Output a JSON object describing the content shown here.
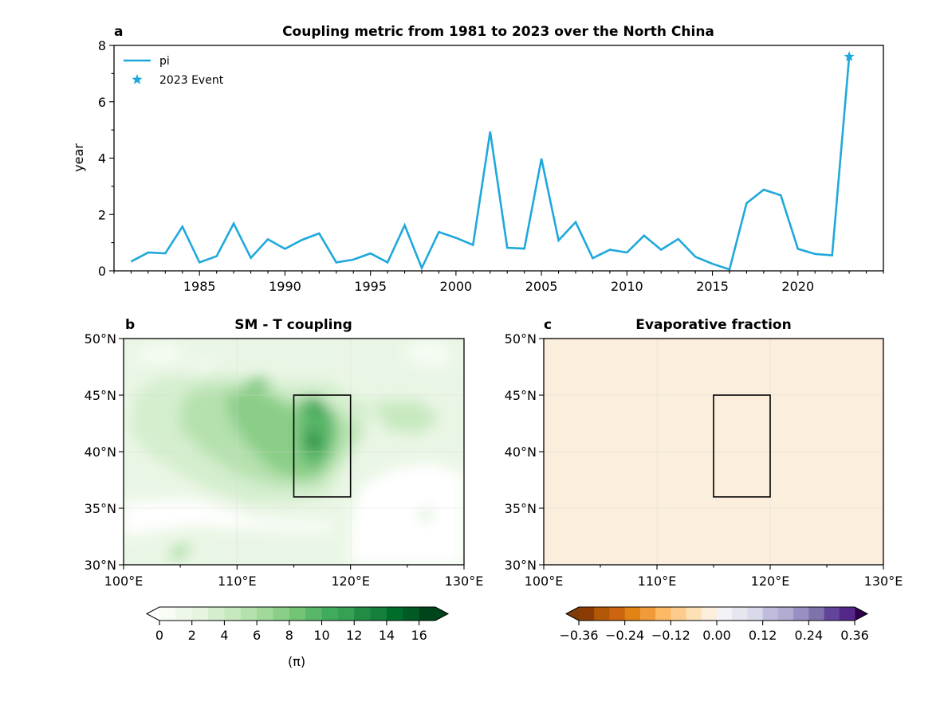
{
  "chart_data": [
    {
      "panel": "a",
      "type": "line",
      "title": "Coupling metric from 1981 to 2023 over the North China",
      "xlabel": "",
      "ylabel": "year",
      "xlim": [
        1980,
        2025
      ],
      "ylim": [
        0,
        8
      ],
      "xticks": [
        1985,
        1990,
        1995,
        2000,
        2005,
        2010,
        2015,
        2020
      ],
      "xtick_labels": [
        "1985",
        "1990",
        "1995",
        "2000",
        "2005",
        "2010",
        "2015",
        "2020"
      ],
      "yticks": [
        0,
        2,
        4,
        6,
        8
      ],
      "ytick_labels": [
        "0",
        "2",
        "4",
        "6",
        "8"
      ],
      "legend": {
        "placement": "top-left",
        "entries": [
          "pi",
          "2023 Event"
        ]
      },
      "color": "#1fa8dc",
      "series": [
        {
          "name": "pi",
          "x": [
            1981,
            1982,
            1983,
            1984,
            1985,
            1986,
            1987,
            1988,
            1989,
            1990,
            1991,
            1992,
            1993,
            1994,
            1995,
            1996,
            1997,
            1998,
            1999,
            2000,
            2001,
            2002,
            2003,
            2004,
            2005,
            2006,
            2007,
            2008,
            2009,
            2010,
            2011,
            2012,
            2013,
            2014,
            2015,
            2016,
            2017,
            2018,
            2019,
            2020,
            2021,
            2022,
            2023
          ],
          "values": [
            0.33,
            0.65,
            0.62,
            1.57,
            0.3,
            0.52,
            1.68,
            0.46,
            1.12,
            0.78,
            1.1,
            1.33,
            0.3,
            0.4,
            0.62,
            0.3,
            1.62,
            0.1,
            1.38,
            1.17,
            0.92,
            4.94,
            0.82,
            0.79,
            3.98,
            1.08,
            1.73,
            0.45,
            0.75,
            0.65,
            1.25,
            0.75,
            1.13,
            0.5,
            0.25,
            0.05,
            2.4,
            2.88,
            2.68,
            0.78,
            0.6,
            0.55,
            7.6
          ]
        },
        {
          "name": "2023 Event",
          "marker": "star",
          "x": [
            2023
          ],
          "values": [
            7.6
          ]
        }
      ]
    },
    {
      "panel": "b",
      "type": "heatmap",
      "title": "SM - T coupling",
      "xlim": [
        100,
        130
      ],
      "ylim": [
        30,
        50
      ],
      "xtick_labels": [
        "100°E",
        "110°E",
        "120°E",
        "130°E"
      ],
      "ytick_labels": [
        "30°N",
        "35°N",
        "40°N",
        "45°N",
        "50°N"
      ],
      "region_box": {
        "lon": [
          115,
          120
        ],
        "lat": [
          36,
          45
        ]
      },
      "colorbar": {
        "cmap": "Greens",
        "levels_min": 0,
        "levels_max": 17,
        "step": 1,
        "ticks": [
          "0",
          "2",
          "4",
          "6",
          "8",
          "10",
          "12",
          "14",
          "16"
        ],
        "label": "(π)",
        "extend": "both",
        "colors": [
          "#f7fcf5",
          "#eef8ea",
          "#e5f5e0",
          "#d4eece",
          "#c7e9c0",
          "#b5e1ae",
          "#a1d99b",
          "#8ace88",
          "#74c476",
          "#5ab769",
          "#41ab5d",
          "#36a155",
          "#238b45",
          "#14803c",
          "#006d2c",
          "#005a24",
          "#00441b"
        ]
      }
    },
    {
      "panel": "c",
      "type": "heatmap",
      "title": "Evaporative fraction",
      "xlim": [
        100,
        130
      ],
      "ylim": [
        30,
        50
      ],
      "xtick_labels": [
        "100°E",
        "110°E",
        "120°E",
        "130°E"
      ],
      "ytick_labels": [
        "30°N",
        "35°N",
        "40°N",
        "45°N",
        "50°N"
      ],
      "region_box": {
        "lon": [
          115,
          120
        ],
        "lat": [
          36,
          45
        ]
      },
      "colorbar": {
        "cmap": "PuOr",
        "levels_min": -0.36,
        "levels_max": 0.36,
        "step": 0.04,
        "ticks": [
          "−0.36",
          "−0.24",
          "−0.12",
          "0.00",
          "0.12",
          "0.24",
          "0.36"
        ],
        "label": "",
        "extend": "both",
        "colors": [
          "#8a3c04",
          "#b35806",
          "#cc6410",
          "#e08214",
          "#f09a3a",
          "#fdb863",
          "#fdcb8c",
          "#fee0b6",
          "#fbeedc",
          "#f4f2f6",
          "#e6e6f0",
          "#d8daeb",
          "#bfbcdc",
          "#b2abd2",
          "#9a8fc3",
          "#8073ac",
          "#62449a",
          "#542788"
        ],
        "under_color": "#7f3b08",
        "over_color": "#2d004b"
      }
    }
  ],
  "labels": {
    "a": "a",
    "b": "b",
    "c": "c"
  }
}
